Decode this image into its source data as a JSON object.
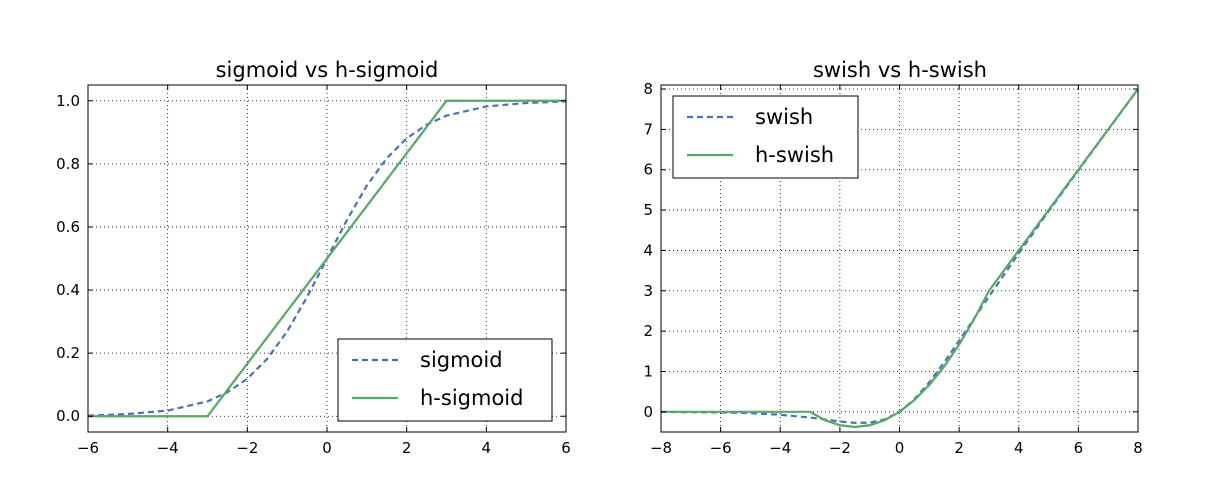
{
  "chart_data": [
    {
      "type": "line",
      "title": "sigmoid vs h-sigmoid",
      "xlabel": "",
      "ylabel": "",
      "xlim": [
        -6,
        6
      ],
      "ylim": [
        -0.05,
        1.05
      ],
      "xticks": [
        -6,
        -4,
        -2,
        0,
        2,
        4,
        6
      ],
      "xtick_labels": [
        "−6",
        "−4",
        "−2",
        "0",
        "2",
        "4",
        "6"
      ],
      "yticks": [
        0.0,
        0.2,
        0.4,
        0.6,
        0.8,
        1.0
      ],
      "ytick_labels": [
        "0.0",
        "0.2",
        "0.4",
        "0.6",
        "0.8",
        "1.0"
      ],
      "grid": true,
      "legend_position": "lower-right",
      "series": [
        {
          "name": "sigmoid",
          "style": "dashed",
          "color": "#4C72B0",
          "x": [
            -6,
            -5,
            -4,
            -3,
            -2.5,
            -2,
            -1.5,
            -1,
            -0.5,
            0,
            0.5,
            1,
            1.5,
            2,
            2.5,
            3,
            4,
            5,
            6
          ],
          "y": [
            0.002,
            0.007,
            0.018,
            0.047,
            0.076,
            0.119,
            0.182,
            0.269,
            0.378,
            0.5,
            0.622,
            0.731,
            0.818,
            0.881,
            0.924,
            0.953,
            0.982,
            0.993,
            0.998
          ]
        },
        {
          "name": "h-sigmoid",
          "style": "solid",
          "color": "#55A868",
          "x": [
            -6,
            -3,
            3,
            6
          ],
          "y": [
            0,
            0,
            1,
            1
          ]
        }
      ]
    },
    {
      "type": "line",
      "title": "swish vs h-swish",
      "xlabel": "",
      "ylabel": "",
      "xlim": [
        -8,
        8
      ],
      "ylim": [
        -0.5,
        8.1
      ],
      "xticks": [
        -8,
        -6,
        -4,
        -2,
        0,
        2,
        4,
        6,
        8
      ],
      "xtick_labels": [
        "−8",
        "−6",
        "−4",
        "−2",
        "0",
        "2",
        "4",
        "6",
        "8"
      ],
      "yticks": [
        0,
        1,
        2,
        3,
        4,
        5,
        6,
        7,
        8
      ],
      "ytick_labels": [
        "0",
        "1",
        "2",
        "3",
        "4",
        "5",
        "6",
        "7",
        "8"
      ],
      "grid": true,
      "legend_position": "upper-left",
      "series": [
        {
          "name": "swish",
          "style": "dashed",
          "color": "#4C72B0",
          "x": [
            -8,
            -6,
            -5,
            -4,
            -3,
            -2.5,
            -2,
            -1.5,
            -1,
            -0.5,
            0,
            0.5,
            1,
            1.5,
            2,
            2.5,
            3,
            4,
            5,
            6,
            7,
            8
          ],
          "y": [
            -0.003,
            -0.015,
            -0.033,
            -0.072,
            -0.142,
            -0.19,
            -0.238,
            -0.273,
            -0.269,
            -0.189,
            0,
            0.311,
            0.731,
            1.227,
            1.762,
            2.31,
            2.858,
            3.928,
            4.967,
            5.985,
            6.994,
            7.997
          ]
        },
        {
          "name": "h-swish",
          "style": "solid",
          "color": "#55A868",
          "x": [
            -8,
            -3,
            -2.5,
            -2,
            -1.5,
            -1,
            -0.5,
            0,
            0.5,
            1,
            1.5,
            2,
            2.5,
            3,
            8
          ],
          "y": [
            0,
            0,
            -0.208,
            -0.333,
            -0.375,
            -0.333,
            -0.208,
            0,
            0.292,
            0.667,
            1.125,
            1.667,
            2.292,
            3,
            8
          ]
        }
      ]
    }
  ]
}
